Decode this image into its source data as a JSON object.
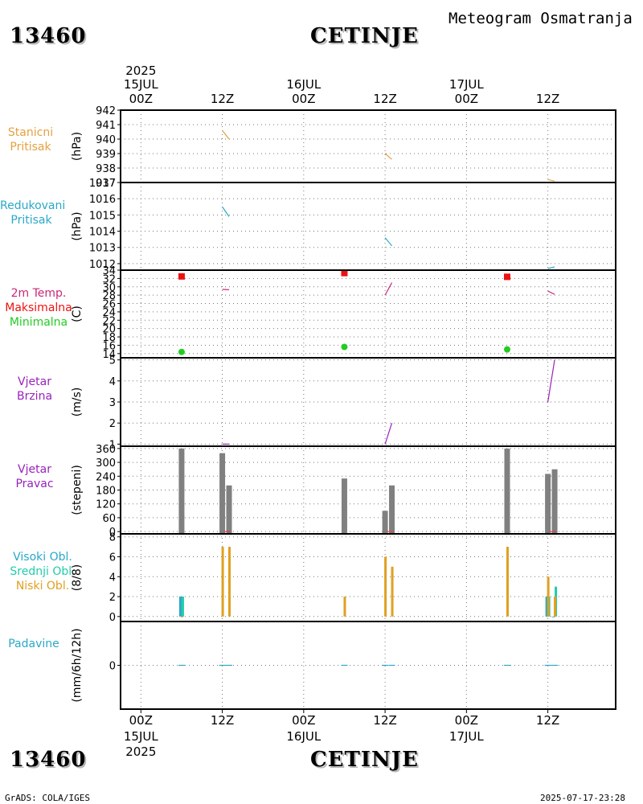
{
  "header": {
    "station_id": "13460",
    "station_name": "CETINJE",
    "meteogram_title": "Meteogram Osmatranja"
  },
  "time_axis": {
    "top_year": "2025",
    "labels": [
      {
        "t": 0,
        "day": "15JUL",
        "hour": "00Z"
      },
      {
        "t": 12,
        "day": "",
        "hour": "12Z"
      },
      {
        "t": 24,
        "day": "16JUL",
        "hour": "00Z"
      },
      {
        "t": 36,
        "day": "",
        "hour": "12Z"
      },
      {
        "t": 48,
        "day": "17JUL",
        "hour": "00Z"
      },
      {
        "t": 60,
        "day": "",
        "hour": "12Z"
      }
    ],
    "bottom_year": "2025",
    "range_hours": [
      -3,
      70
    ]
  },
  "footer": {
    "left": "GrADS: COLA/IGES",
    "right": "2025-07-17-23:28"
  },
  "panel_titles": {
    "p1": [
      "Stanicni",
      "Pritisak"
    ],
    "p2": [
      "Redukovani",
      "Pritisak"
    ],
    "p3": [
      "2m Temp.",
      "Maksimalna",
      "Minimalna"
    ],
    "p4": [
      "Vjetar",
      "Brzina"
    ],
    "p5": [
      "Vjetar",
      "Pravac"
    ],
    "p6": [
      "Visoki Obl.",
      "Srednji Obl.",
      "Niski Obl."
    ],
    "p7": [
      "Padavine"
    ]
  },
  "colors": {
    "station_pressure": "#e6a040",
    "reduced_pressure": "#2aa8c8",
    "temperature": "#c8287a",
    "tmax": "#ee1111",
    "tmin": "#22cc22",
    "wind_speed": "#9922bb",
    "wind_dir": "#808080",
    "high_cloud": "#2aa8c8",
    "mid_cloud": "#22ccaa",
    "low_cloud": "#e0a020",
    "precip": "#2aa8c8"
  },
  "chart_data": [
    {
      "id": "p1",
      "type": "line",
      "ylabel": "(hPa)",
      "ylim": [
        937,
        942
      ],
      "yticks": [
        937,
        938,
        939,
        940,
        941,
        942
      ],
      "series": [
        {
          "name": "Stanicni Pritisak",
          "segments": [
            [
              [
                12,
                940.6
              ],
              [
                13,
                940.0
              ]
            ],
            [
              [
                36,
                939.0
              ],
              [
                37,
                938.6
              ]
            ],
            [
              [
                60,
                937.2
              ],
              [
                61,
                937.1
              ]
            ]
          ]
        }
      ]
    },
    {
      "id": "p2",
      "type": "line",
      "ylabel": "(hPa)",
      "ylim": [
        1011.6,
        1017
      ],
      "yticks": [
        1012,
        1013,
        1014,
        1015,
        1016,
        1017
      ],
      "series": [
        {
          "name": "Redukovani Pritisak",
          "segments": [
            [
              [
                12,
                1015.5
              ],
              [
                13,
                1014.9
              ]
            ],
            [
              [
                36,
                1013.6
              ],
              [
                37,
                1013.1
              ]
            ],
            [
              [
                60,
                1011.7
              ],
              [
                61,
                1011.8
              ]
            ]
          ]
        }
      ]
    },
    {
      "id": "p3",
      "type": "line+scatter",
      "ylabel": "(C)",
      "ylim": [
        13,
        34
      ],
      "yticks": [
        14,
        16,
        18,
        20,
        22,
        24,
        26,
        28,
        30,
        32,
        34
      ],
      "series": [
        {
          "name": "2m Temp.",
          "segments": [
            [
              [
                12,
                29.4
              ],
              [
                13,
                29.3
              ]
            ],
            [
              [
                36,
                28.0
              ],
              [
                37,
                31.0
              ]
            ],
            [
              [
                60,
                29.0
              ],
              [
                61,
                28.2
              ]
            ]
          ]
        },
        {
          "name": "Maksimalna",
          "points": [
            [
              6,
              32.5
            ],
            [
              30,
              33.3
            ],
            [
              54,
              32.4
            ]
          ]
        },
        {
          "name": "Minimalna",
          "points": [
            [
              6,
              14.4
            ],
            [
              30,
              15.6
            ],
            [
              54,
              15.0
            ]
          ]
        }
      ]
    },
    {
      "id": "p4",
      "type": "line",
      "ylabel": "(m/s)",
      "ylim": [
        0.9,
        5.1
      ],
      "yticks": [
        1,
        2,
        3,
        4,
        5
      ],
      "series": [
        {
          "name": "Vjetar Brzina",
          "segments": [
            [
              [
                12,
                1.0
              ],
              [
                13,
                1.0
              ]
            ],
            [
              [
                36,
                1.0
              ],
              [
                37,
                2.0
              ]
            ],
            [
              [
                60,
                3.0
              ],
              [
                61,
                5.0
              ]
            ]
          ]
        }
      ]
    },
    {
      "id": "p5",
      "type": "bar",
      "ylabel": "(stepeni)",
      "ylim": [
        -10,
        370
      ],
      "yticks": [
        0,
        60,
        120,
        180,
        240,
        300,
        360
      ],
      "bars": [
        {
          "t": 6,
          "value": 360
        },
        {
          "t": 12,
          "value": 340
        },
        {
          "t": 13,
          "value": 200
        },
        {
          "t": 30,
          "value": 230
        },
        {
          "t": 36,
          "value": 90
        },
        {
          "t": 37,
          "value": 200
        },
        {
          "t": 54,
          "value": 360
        },
        {
          "t": 60,
          "value": 250
        },
        {
          "t": 61,
          "value": 270
        }
      ]
    },
    {
      "id": "p6",
      "type": "bar",
      "ylabel": "(8/8)",
      "ylim": [
        -0.5,
        8.3
      ],
      "yticks": [
        0,
        2,
        4,
        6,
        8
      ],
      "series": [
        {
          "name": "Visoki Obl.",
          "values": {
            "6": 2,
            "60": 2,
            "61": 0
          }
        },
        {
          "name": "Srednji Obl.",
          "values": {
            "6": 2,
            "60": 2,
            "61": 3
          }
        },
        {
          "name": "Niski Obl.",
          "values": {
            "6": 0,
            "12": 7,
            "13": 7,
            "30": 2,
            "36": 6,
            "37": 5,
            "54": 7,
            "60": 4,
            "61": 2
          }
        }
      ]
    },
    {
      "id": "p7",
      "type": "bar",
      "ylabel": "(mm/6h/12h)",
      "ylim": [
        -5,
        5
      ],
      "yticks": [
        0
      ],
      "series": [
        {
          "name": "Padavine",
          "values": {
            "6": 0,
            "12": 0,
            "13": 0,
            "30": 0,
            "36": 0,
            "37": 0,
            "54": 0,
            "60": 0,
            "61": 0
          }
        }
      ]
    }
  ]
}
